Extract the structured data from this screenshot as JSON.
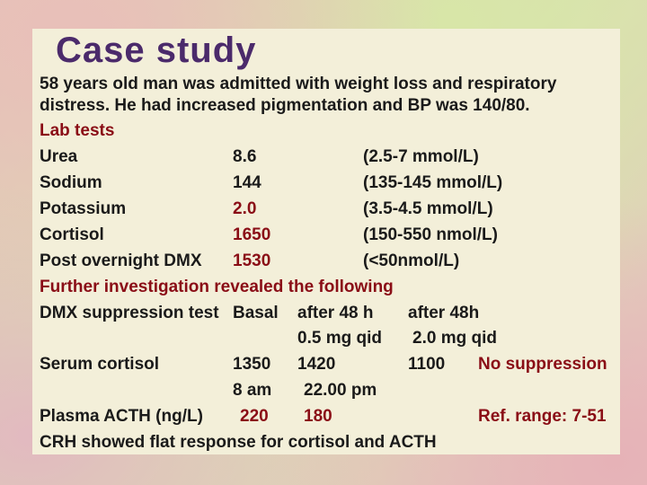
{
  "slide": {
    "title": "Case study",
    "intro_line1": "58 years old man was admitted with weight loss and respiratory",
    "intro_line2": "distress. He had increased pigmentation and BP was 140/80.",
    "lab_heading": "Lab tests",
    "labs": [
      {
        "name": "Urea",
        "value": "8.6",
        "range": "(2.5-7 mmol/L)"
      },
      {
        "name": "Sodium",
        "value": "144",
        "range": "(135-145 mmol/L)"
      },
      {
        "name": "Potassium",
        "value": "2.0",
        "range": "(3.5-4.5 mmol/L)"
      },
      {
        "name": "Cortisol",
        "value": "1650",
        "range": "(150-550 nmol/L)"
      },
      {
        "name": "Post overnight DMX",
        "value": "1530",
        "range": "(<50nmol/L)"
      }
    ],
    "further": "Further investigation revealed the following",
    "dmx_label": "DMX suppression test",
    "dmx_basal": "Basal",
    "dmx_col1": "after 48 h",
    "dmx_col2": "after 48h",
    "dose1": "0.5 mg qid",
    "dose2": "2.0 mg qid",
    "serum_label": "Serum cortisol",
    "serum_basal": "1350",
    "serum_v1": "1420",
    "serum_v2": "1100",
    "serum_note": "No suppression",
    "time1": "8 am",
    "time2": "22.00 pm",
    "acth_label": "Plasma ACTH (ng/L)",
    "acth_v1": "220",
    "acth_v2": "180",
    "acth_note": "Ref. range: 7-51",
    "crh": "CRH showed flat response for cortisol and ACTH"
  }
}
